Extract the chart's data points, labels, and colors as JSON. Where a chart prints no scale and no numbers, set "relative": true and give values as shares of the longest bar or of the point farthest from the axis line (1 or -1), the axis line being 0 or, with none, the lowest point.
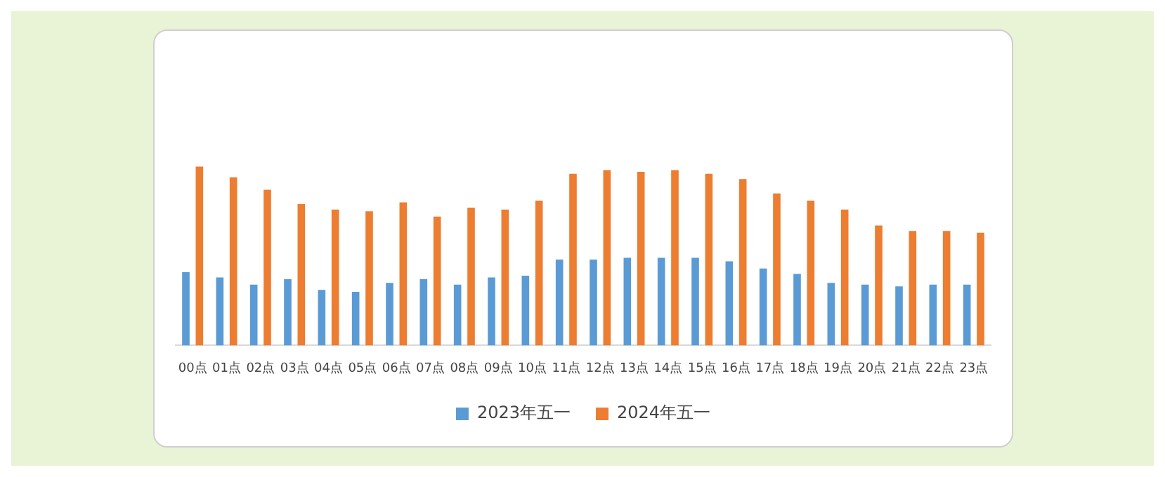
{
  "chart_data": {
    "type": "bar",
    "relative": true,
    "legend": "bottom",
    "categories": [
      "00点",
      "01点",
      "02点",
      "03点",
      "04点",
      "05点",
      "06点",
      "07点",
      "08点",
      "09点",
      "10点",
      "11点",
      "12点",
      "13点",
      "14点",
      "15点",
      "16点",
      "17点",
      "18点",
      "19点",
      "20点",
      "21点",
      "22点",
      "23点"
    ],
    "series": [
      {
        "name": "2023年五一",
        "color": "#5b9bd5",
        "values": [
          0.41,
          0.38,
          0.34,
          0.37,
          0.31,
          0.3,
          0.35,
          0.37,
          0.34,
          0.38,
          0.39,
          0.48,
          0.48,
          0.49,
          0.49,
          0.49,
          0.47,
          0.43,
          0.4,
          0.35,
          0.34,
          0.33,
          0.34,
          0.34
        ]
      },
      {
        "name": "2024年五一",
        "color": "#ed7d31",
        "values": [
          1.0,
          0.94,
          0.87,
          0.79,
          0.76,
          0.75,
          0.8,
          0.72,
          0.77,
          0.76,
          0.81,
          0.96,
          0.98,
          0.97,
          0.98,
          0.96,
          0.93,
          0.85,
          0.81,
          0.76,
          0.67,
          0.64,
          0.64,
          0.63
        ]
      }
    ]
  }
}
